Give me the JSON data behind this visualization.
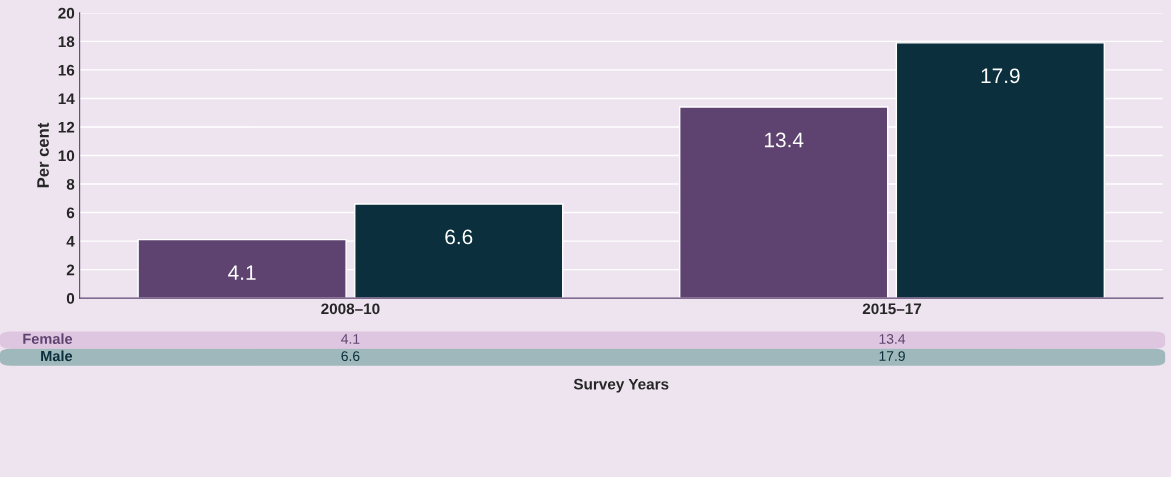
{
  "chart_data": {
    "type": "bar",
    "ylabel": "Per cent",
    "xlabel": "Survey Years",
    "categories": [
      "2008–10",
      "2015–17"
    ],
    "series": [
      {
        "name": "Female",
        "color": "#5e4370",
        "values": [
          4.1,
          13.4
        ],
        "value_labels": [
          "4.1",
          "13.4"
        ]
      },
      {
        "name": "Male",
        "color": "#0b2f3c",
        "values": [
          6.6,
          17.9
        ],
        "value_labels": [
          "6.6",
          "17.9"
        ]
      }
    ],
    "ylim": [
      0,
      20
    ],
    "yticks": [
      0,
      2,
      4,
      6,
      8,
      10,
      12,
      14,
      16,
      18,
      20
    ],
    "grid": "y",
    "annotations": [
      "4.1",
      "13.4",
      "6.6",
      "17.9"
    ],
    "legend": false
  }
}
